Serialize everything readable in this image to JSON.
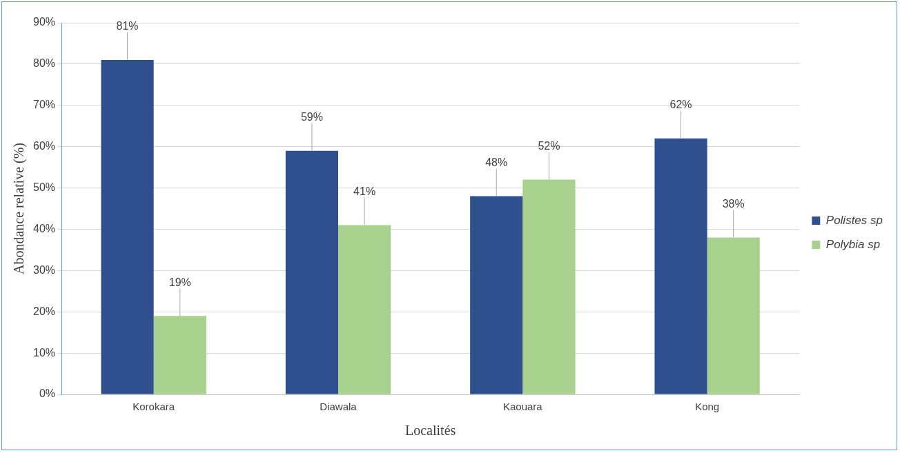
{
  "chart_data": {
    "type": "bar",
    "xlabel": "Localités",
    "ylabel": "Abondance relative (%)",
    "categories": [
      "Korokara",
      "Diawala",
      "Kaouara",
      "Kong"
    ],
    "series": [
      {
        "name": "Polistes sp",
        "color": "#2f4f8f",
        "values": [
          81,
          59,
          48,
          62
        ],
        "value_labels": [
          "81%",
          "59%",
          "48%",
          "62%"
        ]
      },
      {
        "name": "Polybia sp",
        "color": "#a9d18e",
        "values": [
          19,
          41,
          52,
          38
        ],
        "value_labels": [
          "19%",
          "41%",
          "52%",
          "38%"
        ]
      }
    ],
    "ylim": [
      0,
      90
    ],
    "yticks": [
      {
        "value": 0,
        "label": "0%"
      },
      {
        "value": 10,
        "label": "10%"
      },
      {
        "value": 20,
        "label": "20%"
      },
      {
        "value": 30,
        "label": "30%"
      },
      {
        "value": 40,
        "label": "40%"
      },
      {
        "value": 50,
        "label": "50%"
      },
      {
        "value": 60,
        "label": "60%"
      },
      {
        "value": 70,
        "label": "70%"
      },
      {
        "value": 80,
        "label": "80%"
      },
      {
        "value": 90,
        "label": "90%"
      }
    ],
    "grid": "y",
    "legend": "right"
  }
}
